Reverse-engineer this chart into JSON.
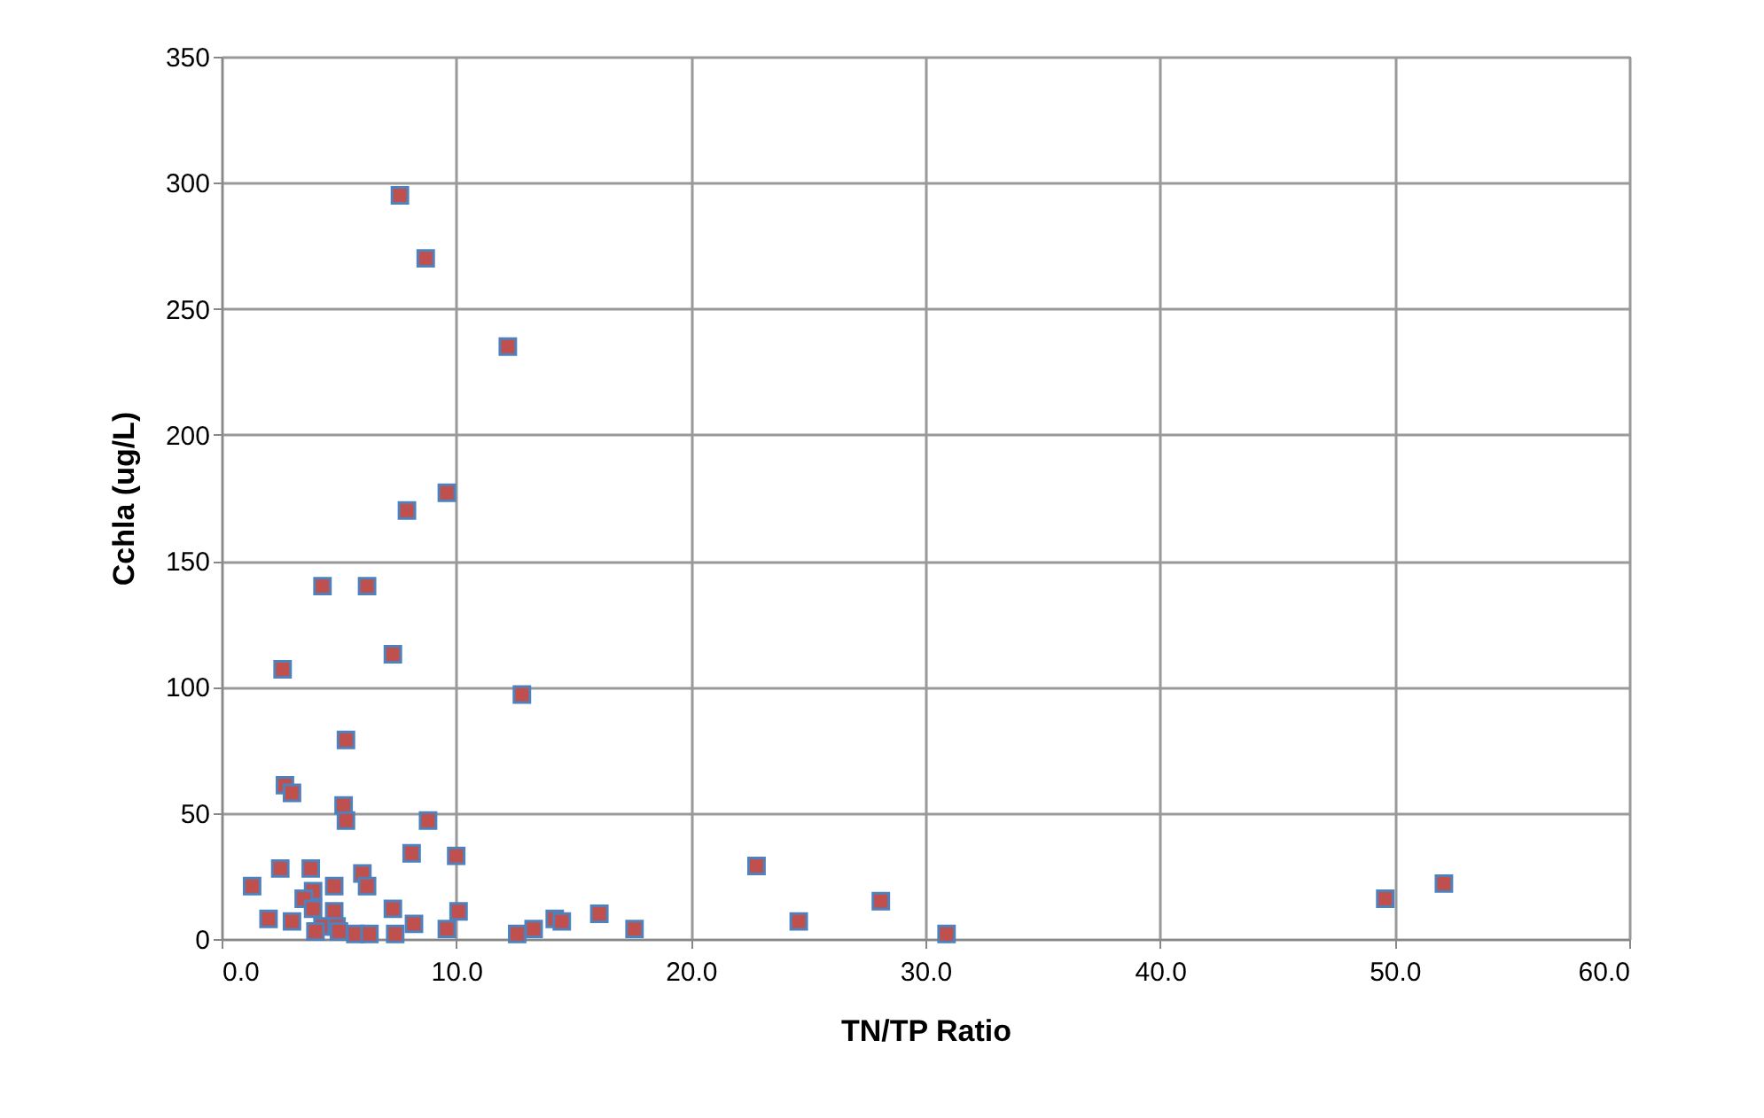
{
  "chart_data": {
    "type": "scatter",
    "xlabel": "TN/TP Ratio",
    "ylabel": "Cchla (ug/L)",
    "x": [
      7.6,
      8.7,
      12.2,
      9.6,
      7.9,
      4.3,
      6.2,
      7.3,
      2.6,
      12.8,
      5.3,
      2.7,
      3.0,
      5.2,
      5.3,
      8.8,
      8.1,
      10.0,
      22.8,
      1.3,
      2.5,
      3.8,
      3.9,
      3.5,
      6.0,
      6.2,
      4.8,
      3.9,
      4.8,
      7.3,
      10.1,
      2.0,
      3.0,
      4.3,
      4.9,
      5.7,
      6.3,
      7.4,
      8.2,
      9.6,
      12.6,
      13.3,
      14.2,
      14.5,
      16.1,
      17.6,
      24.6,
      28.1,
      30.9,
      49.6,
      52.1,
      4.0,
      5.0
    ],
    "series": [
      {
        "color": "#c0504d",
        "values": [
          295,
          270,
          235,
          177,
          170,
          140,
          140,
          113,
          107,
          97,
          79,
          61,
          58,
          53,
          47,
          47,
          34,
          33,
          29,
          21,
          28,
          28,
          19,
          16,
          26,
          21,
          21,
          12,
          11,
          12,
          11,
          8,
          7,
          5,
          5,
          2,
          2,
          2,
          6,
          4,
          2,
          4,
          8,
          7,
          10,
          4,
          7,
          15,
          2,
          16,
          22,
          3,
          3
        ]
      }
    ],
    "xlim": [
      0,
      60
    ],
    "xticks": [
      {
        "value": 0,
        "label": "0.0"
      },
      {
        "value": 10,
        "label": "10.0"
      },
      {
        "value": 20,
        "label": "20.0"
      },
      {
        "value": 30,
        "label": "30.0"
      },
      {
        "value": 40,
        "label": "40.0"
      },
      {
        "value": 50,
        "label": "50.0"
      },
      {
        "value": 60,
        "label": "60.0"
      }
    ],
    "ylim": [
      0,
      350
    ],
    "yticks": [
      0,
      50,
      100,
      150,
      200,
      250,
      300,
      350
    ],
    "grid": true,
    "marker": "square"
  }
}
